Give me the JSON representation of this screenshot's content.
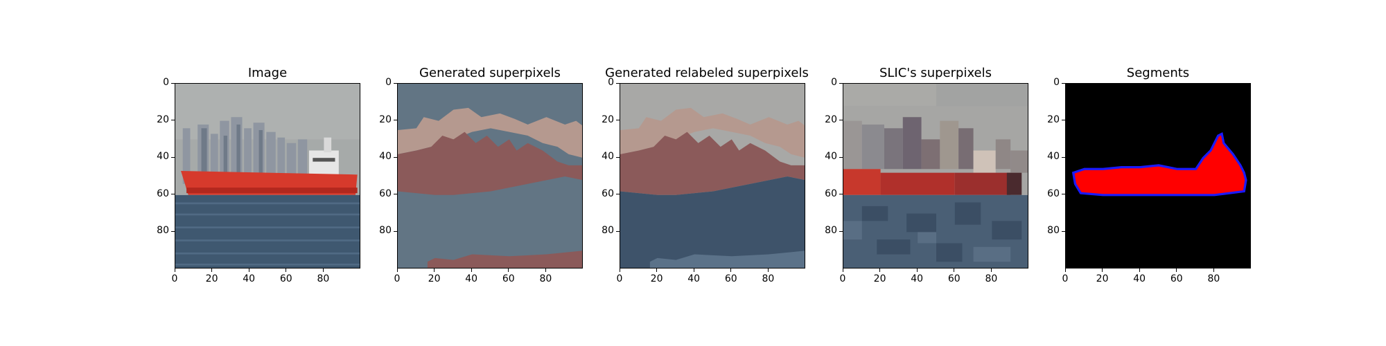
{
  "panels": [
    {
      "title": "Image"
    },
    {
      "title": "Generated superpixels"
    },
    {
      "title": "Generated relabeled superpixels"
    },
    {
      "title": "SLIC's superpixels"
    },
    {
      "title": "Segments"
    }
  ],
  "axes": {
    "x_ticks": [
      "0",
      "20",
      "40",
      "60",
      "80"
    ],
    "y_ticks": [
      "0",
      "20",
      "40",
      "60",
      "80"
    ],
    "range": [
      0,
      100
    ]
  },
  "colors": {
    "sky": "#a9adad",
    "water": "#3f5870",
    "ship_red": "#d63a2c",
    "seg_red": "#ff0000",
    "seg_blue": "#1a1aff",
    "sp_blue": "#627584",
    "sp_tan": "#b5998f",
    "sp_brown": "#8b5a5a",
    "rl_gray": "#a8a8a6",
    "rl_blue": "#3e536a"
  }
}
